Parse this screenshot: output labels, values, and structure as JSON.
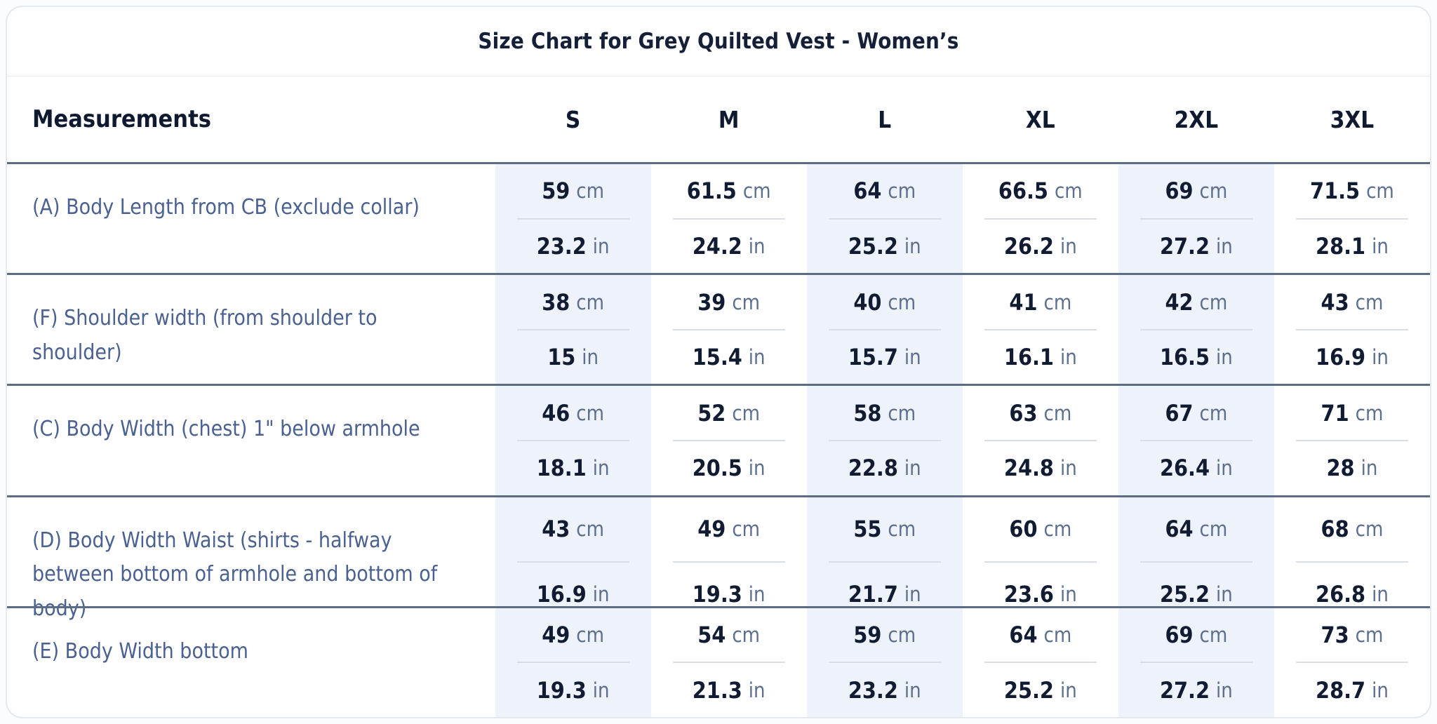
{
  "title": "Size Chart for Grey Quilted Vest - Women’s",
  "table": {
    "measurements_header": "Measurements",
    "size_headers": [
      "S",
      "M",
      "L",
      "XL",
      "2XL",
      "3XL"
    ],
    "unit_cm": "cm",
    "unit_in": "in",
    "rows": [
      {
        "label": "(A) Body Length from CB (exclude collar)",
        "cm": [
          "59",
          "61.5",
          "64",
          "66.5",
          "69",
          "71.5"
        ],
        "in": [
          "23.2",
          "24.2",
          "25.2",
          "26.2",
          "27.2",
          "28.1"
        ]
      },
      {
        "label": "(F) Shoulder width (from shoulder to shoulder)",
        "cm": [
          "38",
          "39",
          "40",
          "41",
          "42",
          "43"
        ],
        "in": [
          "15",
          "15.4",
          "15.7",
          "16.1",
          "16.5",
          "16.9"
        ]
      },
      {
        "label": "(C) Body Width (chest) 1\" below armhole",
        "cm": [
          "46",
          "52",
          "58",
          "63",
          "67",
          "71"
        ],
        "in": [
          "18.1",
          "20.5",
          "22.8",
          "24.8",
          "26.4",
          "28"
        ]
      },
      {
        "label": "(D) Body Width Waist (shirts - halfway between bottom of armhole and bottom of body)",
        "cm": [
          "43",
          "49",
          "55",
          "60",
          "64",
          "68"
        ],
        "in": [
          "16.9",
          "19.3",
          "21.7",
          "23.6",
          "25.2",
          "26.8"
        ]
      },
      {
        "label": "(E) Body Width bottom",
        "cm": [
          "49",
          "54",
          "59",
          "64",
          "69",
          "73"
        ],
        "in": [
          "19.3",
          "21.3",
          "23.2",
          "25.2",
          "27.2",
          "28.7"
        ]
      }
    ]
  },
  "colors": {
    "accent_row_border": "#5c6c85",
    "shaded_column": "#eef2fb",
    "value_text": "#111c33",
    "unit_text": "#5d6f8e",
    "label_text": "#4a6191",
    "header_text": "#0f1a30",
    "cell_divider": "#d9dde6",
    "card_border": "#e5e8ee"
  }
}
